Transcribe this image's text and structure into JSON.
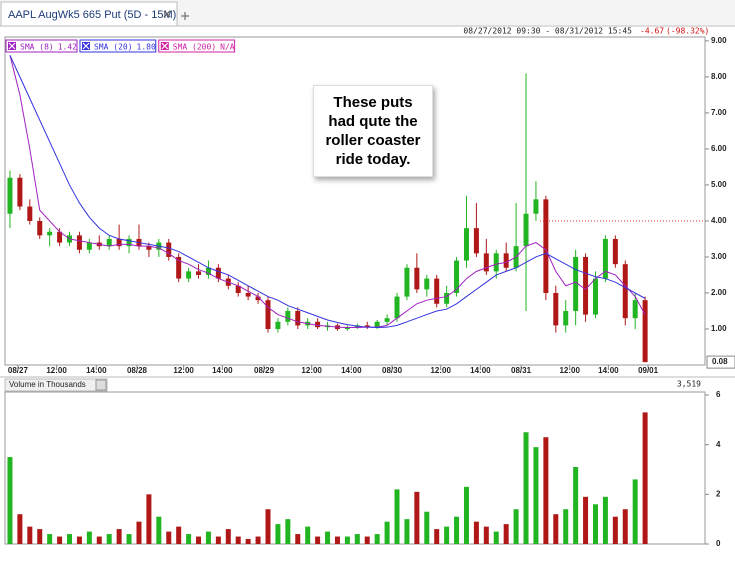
{
  "tabs": [
    {
      "title": "AAPL AugWk5 665 Put (5D - 15M)"
    }
  ],
  "chart_data": [
    {
      "type": "candlestick",
      "date_range": "08/27/2012 09:30 - 08/31/2012 15:45",
      "change": "-4.67",
      "change_pct": "(-98.32%)",
      "annotation": "These puts had qute the roller coaster ride today.",
      "up_color": "#21b521",
      "down_color": "#b01818",
      "reference_line": 4.0,
      "reference_color": "#e03030",
      "ylim": [
        0,
        9.08
      ],
      "yticks": [
        {
          "value": 1,
          "label": "1.00"
        },
        {
          "value": 2,
          "label": "2.00"
        },
        {
          "value": 3,
          "label": "3.00"
        },
        {
          "value": 4,
          "label": "4.00"
        },
        {
          "value": 5,
          "label": "5.00"
        },
        {
          "value": 6,
          "label": "6.00"
        },
        {
          "value": 7,
          "label": "7.00"
        },
        {
          "value": 8,
          "label": "8.00"
        },
        {
          "value": 9,
          "label": "9.00"
        }
      ],
      "xticks": [
        {
          "value": 1.3,
          "label": "08/27"
        },
        {
          "value": 5.2,
          "label": "12:00"
        },
        {
          "value": 9.2,
          "label": "14:00"
        },
        {
          "value": 13.3,
          "label": "08/28"
        },
        {
          "value": 18.0,
          "label": "12:00"
        },
        {
          "value": 21.9,
          "label": "14:00"
        },
        {
          "value": 26.1,
          "label": "08/29"
        },
        {
          "value": 30.9,
          "label": "12:00"
        },
        {
          "value": 34.9,
          "label": "14:00"
        },
        {
          "value": 39.0,
          "label": "08/30"
        },
        {
          "value": 43.9,
          "label": "12:00"
        },
        {
          "value": 47.9,
          "label": "14:00"
        },
        {
          "value": 52.0,
          "label": "08/31"
        },
        {
          "value": 56.9,
          "label": "12:00"
        },
        {
          "value": 60.8,
          "label": "14:00"
        },
        {
          "value": 64.8,
          "label": "09/01"
        }
      ],
      "ohlc": [
        [
          4.2,
          5.4,
          3.8,
          5.2
        ],
        [
          5.2,
          5.3,
          4.3,
          4.4
        ],
        [
          4.4,
          4.6,
          3.9,
          4.0
        ],
        [
          4.0,
          4.1,
          3.5,
          3.6
        ],
        [
          3.6,
          3.8,
          3.3,
          3.7
        ],
        [
          3.7,
          3.8,
          3.3,
          3.4
        ],
        [
          3.4,
          3.7,
          3.3,
          3.6
        ],
        [
          3.6,
          3.7,
          3.1,
          3.2
        ],
        [
          3.2,
          3.5,
          3.1,
          3.4
        ],
        [
          3.4,
          3.6,
          3.2,
          3.3
        ],
        [
          3.3,
          3.6,
          3.2,
          3.5
        ],
        [
          3.5,
          3.9,
          3.2,
          3.3
        ],
        [
          3.3,
          3.6,
          3.1,
          3.5
        ],
        [
          3.5,
          3.9,
          3.2,
          3.3
        ],
        [
          3.3,
          3.4,
          3.0,
          3.2
        ],
        [
          3.2,
          3.5,
          3.0,
          3.4
        ],
        [
          3.4,
          3.5,
          2.9,
          3.0
        ],
        [
          3.0,
          3.1,
          2.3,
          2.4
        ],
        [
          2.4,
          2.7,
          2.3,
          2.6
        ],
        [
          2.6,
          2.8,
          2.4,
          2.5
        ],
        [
          2.5,
          2.9,
          2.4,
          2.7
        ],
        [
          2.7,
          2.8,
          2.3,
          2.4
        ],
        [
          2.4,
          2.5,
          2.1,
          2.2
        ],
        [
          2.2,
          2.3,
          1.9,
          2.0
        ],
        [
          2.0,
          2.2,
          1.8,
          1.9
        ],
        [
          1.9,
          2.0,
          1.7,
          1.8
        ],
        [
          1.8,
          1.9,
          0.9,
          1.0
        ],
        [
          1.0,
          1.3,
          0.9,
          1.2
        ],
        [
          1.2,
          1.6,
          1.1,
          1.5
        ],
        [
          1.5,
          1.6,
          1.0,
          1.1
        ],
        [
          1.1,
          1.3,
          1.0,
          1.2
        ],
        [
          1.2,
          1.3,
          1.0,
          1.05
        ],
        [
          1.05,
          1.2,
          0.95,
          1.1
        ],
        [
          1.1,
          1.15,
          0.95,
          1.0
        ],
        [
          1.0,
          1.1,
          0.95,
          1.05
        ],
        [
          1.05,
          1.15,
          1.0,
          1.1
        ],
        [
          1.1,
          1.2,
          1.0,
          1.05
        ],
        [
          1.05,
          1.25,
          1.0,
          1.2
        ],
        [
          1.2,
          1.4,
          1.1,
          1.3
        ],
        [
          1.3,
          2.0,
          1.2,
          1.9
        ],
        [
          1.9,
          2.8,
          1.8,
          2.7
        ],
        [
          2.7,
          3.1,
          2.0,
          2.1
        ],
        [
          2.1,
          2.5,
          1.9,
          2.4
        ],
        [
          2.4,
          2.5,
          1.6,
          1.7
        ],
        [
          1.7,
          2.2,
          1.6,
          2.0
        ],
        [
          2.0,
          3.0,
          1.9,
          2.9
        ],
        [
          2.9,
          4.7,
          2.7,
          3.8
        ],
        [
          3.8,
          4.5,
          3.0,
          3.1
        ],
        [
          3.1,
          3.5,
          2.5,
          2.6
        ],
        [
          2.6,
          3.2,
          2.4,
          3.1
        ],
        [
          3.1,
          3.4,
          2.6,
          2.7
        ],
        [
          2.7,
          4.5,
          2.6,
          3.3
        ],
        [
          3.3,
          8.1,
          1.5,
          4.2
        ],
        [
          4.2,
          5.1,
          4.0,
          4.6
        ],
        [
          4.6,
          4.7,
          1.8,
          2.0
        ],
        [
          2.0,
          2.2,
          0.9,
          1.1
        ],
        [
          1.1,
          1.8,
          0.9,
          1.5
        ],
        [
          1.5,
          3.2,
          1.1,
          3.0
        ],
        [
          3.0,
          3.1,
          1.2,
          1.4
        ],
        [
          1.4,
          2.6,
          1.3,
          2.4
        ],
        [
          2.4,
          3.6,
          2.3,
          3.5
        ],
        [
          3.5,
          3.6,
          2.7,
          2.8
        ],
        [
          2.8,
          2.9,
          1.1,
          1.3
        ],
        [
          1.3,
          2.0,
          1.0,
          1.8
        ],
        [
          1.8,
          1.9,
          0.08,
          0.08
        ]
      ],
      "series": [
        {
          "name": "SMA (8)",
          "legend_value": "1.42",
          "color": "#a020c0",
          "values": [
            8.6,
            7.5,
            6.0,
            4.3,
            4.0,
            3.7,
            3.5,
            3.45,
            3.4,
            3.35,
            3.3,
            3.35,
            3.35,
            3.3,
            3.3,
            3.25,
            3.1,
            2.9,
            2.8,
            2.65,
            2.55,
            2.4,
            2.3,
            2.2,
            2.05,
            1.9,
            1.6,
            1.4,
            1.3,
            1.2,
            1.15,
            1.1,
            1.08,
            1.05,
            1.04,
            1.04,
            1.05,
            1.05,
            1.1,
            1.3,
            1.5,
            1.7,
            1.8,
            1.85,
            1.9,
            2.1,
            2.4,
            2.6,
            2.7,
            2.8,
            2.85,
            3.0,
            3.3,
            3.4,
            3.2,
            2.6,
            2.2,
            2.3,
            2.1,
            2.4,
            2.6,
            2.5,
            2.2,
            1.9,
            1.4
          ]
        },
        {
          "name": "SMA (20)",
          "legend_value": "1.80",
          "color": "#3333e0",
          "values": [
            8.6,
            8.0,
            7.4,
            6.8,
            6.2,
            5.6,
            5.0,
            4.5,
            4.1,
            3.8,
            3.6,
            3.5,
            3.45,
            3.4,
            3.35,
            3.3,
            3.25,
            3.15,
            3.0,
            2.85,
            2.7,
            2.6,
            2.5,
            2.35,
            2.2,
            2.05,
            1.9,
            1.8,
            1.65,
            1.55,
            1.45,
            1.35,
            1.25,
            1.18,
            1.12,
            1.08,
            1.05,
            1.04,
            1.05,
            1.1,
            1.2,
            1.3,
            1.4,
            1.5,
            1.55,
            1.7,
            1.9,
            2.1,
            2.3,
            2.5,
            2.6,
            2.7,
            2.85,
            3.0,
            3.1,
            2.95,
            2.8,
            2.65,
            2.55,
            2.45,
            2.4,
            2.3,
            2.15,
            2.0,
            1.85
          ]
        },
        {
          "name": "SMA (200)",
          "legend_value": "N/A",
          "color": "#d020a0"
        }
      ]
    },
    {
      "type": "volume",
      "title": "Volume in Thousands",
      "readout": "3,519",
      "ylim": [
        0,
        6
      ],
      "yticks": [
        0,
        2,
        4,
        6
      ],
      "values": [
        3.5,
        1.2,
        0.7,
        0.6,
        0.4,
        0.3,
        0.4,
        0.3,
        0.5,
        0.3,
        0.4,
        0.6,
        0.4,
        0.9,
        2.0,
        1.1,
        0.5,
        0.7,
        0.4,
        0.3,
        0.5,
        0.3,
        0.6,
        0.3,
        0.2,
        0.3,
        1.4,
        0.8,
        1.0,
        0.4,
        0.7,
        0.3,
        0.5,
        0.3,
        0.3,
        0.4,
        0.3,
        0.4,
        0.9,
        2.2,
        1.0,
        2.1,
        1.3,
        0.6,
        0.7,
        1.1,
        2.3,
        0.9,
        0.7,
        0.5,
        0.8,
        1.4,
        4.5,
        3.9,
        4.3,
        1.2,
        1.4,
        3.1,
        1.9,
        1.6,
        1.9,
        1.1,
        1.4,
        2.6,
        5.3
      ]
    }
  ]
}
